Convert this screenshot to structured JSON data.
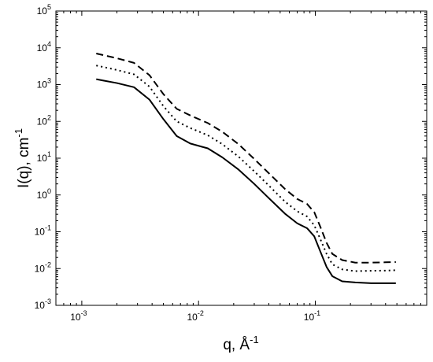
{
  "chart_data": {
    "type": "line",
    "title": "",
    "xlabel": {
      "base": "q, Å",
      "exp": "-1"
    },
    "ylabel": {
      "base": "I(q), cm",
      "exp": "-1"
    },
    "xscale": "log",
    "yscale": "log",
    "xlim": [
      0.0006,
      0.9
    ],
    "ylim": [
      0.001,
      100000
    ],
    "grid": false,
    "legend": "none",
    "x_ticks": [
      {
        "value": 0.001,
        "base": "10",
        "exp": "-3"
      },
      {
        "value": 0.01,
        "base": "10",
        "exp": "-2"
      },
      {
        "value": 0.1,
        "base": "10",
        "exp": "-1"
      }
    ],
    "y_ticks": [
      {
        "value": 0.001,
        "base": "10",
        "exp": "-3"
      },
      {
        "value": 0.01,
        "base": "10",
        "exp": "-2"
      },
      {
        "value": 0.1,
        "base": "10",
        "exp": "-1"
      },
      {
        "value": 1,
        "base": "10",
        "exp": "0"
      },
      {
        "value": 10,
        "base": "10",
        "exp": "1"
      },
      {
        "value": 100,
        "base": "10",
        "exp": "2"
      },
      {
        "value": 1000,
        "base": "10",
        "exp": "3"
      },
      {
        "value": 10000,
        "base": "10",
        "exp": "4"
      },
      {
        "value": 100000,
        "base": "10",
        "exp": "5"
      }
    ],
    "series": [
      {
        "style": "dashed",
        "color": "#000000",
        "points": [
          [
            0.00133,
            7000
          ],
          [
            0.002,
            5200
          ],
          [
            0.0028,
            3900
          ],
          [
            0.0038,
            1800
          ],
          [
            0.005,
            550
          ],
          [
            0.0065,
            220
          ],
          [
            0.0085,
            145
          ],
          [
            0.012,
            90
          ],
          [
            0.016,
            52
          ],
          [
            0.022,
            24
          ],
          [
            0.03,
            9.5
          ],
          [
            0.04,
            3.9
          ],
          [
            0.055,
            1.45
          ],
          [
            0.07,
            0.78
          ],
          [
            0.085,
            0.57
          ],
          [
            0.098,
            0.34
          ],
          [
            0.11,
            0.14
          ],
          [
            0.125,
            0.05
          ],
          [
            0.14,
            0.025
          ],
          [
            0.17,
            0.017
          ],
          [
            0.22,
            0.0145
          ],
          [
            0.3,
            0.0145
          ],
          [
            0.4,
            0.0148
          ],
          [
            0.49,
            0.015
          ]
        ]
      },
      {
        "style": "dotted",
        "color": "#000000",
        "points": [
          [
            0.00133,
            3300
          ],
          [
            0.002,
            2500
          ],
          [
            0.0028,
            1900
          ],
          [
            0.0038,
            880
          ],
          [
            0.005,
            260
          ],
          [
            0.0065,
            100
          ],
          [
            0.0085,
            66
          ],
          [
            0.012,
            42
          ],
          [
            0.016,
            24
          ],
          [
            0.022,
            11
          ],
          [
            0.03,
            4.4
          ],
          [
            0.04,
            1.8
          ],
          [
            0.055,
            0.66
          ],
          [
            0.07,
            0.36
          ],
          [
            0.085,
            0.26
          ],
          [
            0.098,
            0.15
          ],
          [
            0.11,
            0.065
          ],
          [
            0.125,
            0.025
          ],
          [
            0.14,
            0.013
          ],
          [
            0.17,
            0.0095
          ],
          [
            0.22,
            0.0085
          ],
          [
            0.3,
            0.0087
          ],
          [
            0.4,
            0.0088
          ],
          [
            0.49,
            0.009
          ]
        ]
      },
      {
        "style": "solid",
        "color": "#000000",
        "points": [
          [
            0.00133,
            1400
          ],
          [
            0.002,
            1100
          ],
          [
            0.0028,
            850
          ],
          [
            0.0038,
            390
          ],
          [
            0.005,
            115
          ],
          [
            0.0065,
            40
          ],
          [
            0.0085,
            25
          ],
          [
            0.012,
            18.5
          ],
          [
            0.016,
            10.5
          ],
          [
            0.022,
            4.9
          ],
          [
            0.03,
            2.0
          ],
          [
            0.04,
            0.82
          ],
          [
            0.055,
            0.31
          ],
          [
            0.07,
            0.17
          ],
          [
            0.085,
            0.125
          ],
          [
            0.098,
            0.075
          ],
          [
            0.11,
            0.03
          ],
          [
            0.125,
            0.011
          ],
          [
            0.14,
            0.0062
          ],
          [
            0.17,
            0.0045
          ],
          [
            0.22,
            0.0042
          ],
          [
            0.3,
            0.004
          ],
          [
            0.4,
            0.004
          ],
          [
            0.49,
            0.004
          ]
        ]
      }
    ]
  }
}
